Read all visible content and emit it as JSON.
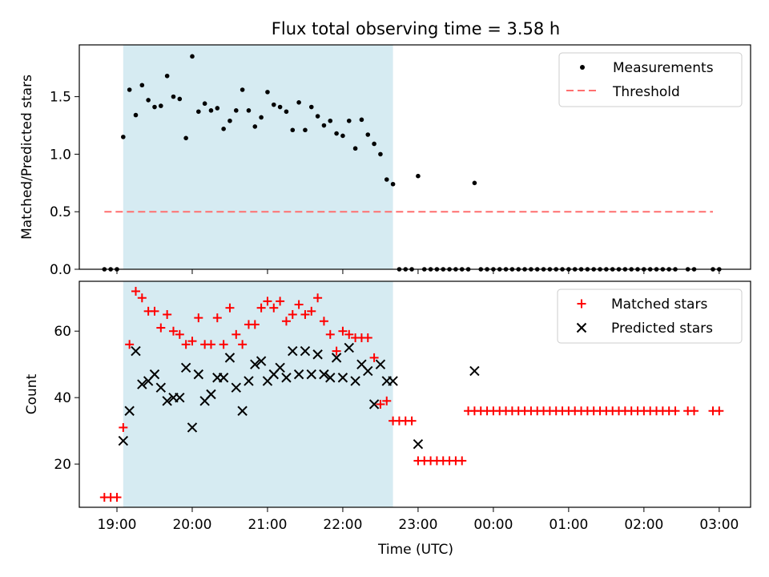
{
  "colors": {
    "measurement": "#000000",
    "threshold": "#ff6f6f",
    "matched": "#ff0000",
    "predicted": "#000000",
    "highlight": "#add8e6"
  },
  "chart_data": [
    {
      "type": "scatter",
      "title": "Flux total observing time = 3.58 h",
      "xlabel": "",
      "ylabel": "Matched/Predicted stars",
      "yticks": [
        "0.0",
        "0.5",
        "1.0",
        "1.5"
      ],
      "ylim": [
        0,
        1.95
      ],
      "x_range": [
        "18:30",
        "03:25"
      ],
      "highlight_span": [
        "19:05",
        "22:40"
      ],
      "legend_position": "upper right",
      "legend": [
        "Measurements",
        "Threshold"
      ],
      "threshold": {
        "name": "Threshold",
        "y": 0.5,
        "x_from": "18:50",
        "x_to": "02:55"
      },
      "series": [
        {
          "name": "Measurements",
          "x": [
            "18:50",
            "18:55",
            "19:00",
            "19:05",
            "19:10",
            "19:15",
            "19:20",
            "19:25",
            "19:30",
            "19:35",
            "19:40",
            "19:45",
            "19:50",
            "19:55",
            "20:00",
            "20:05",
            "20:10",
            "20:15",
            "20:20",
            "20:25",
            "20:30",
            "20:35",
            "20:40",
            "20:45",
            "20:50",
            "20:55",
            "21:00",
            "21:05",
            "21:10",
            "21:15",
            "21:20",
            "21:25",
            "21:30",
            "21:35",
            "21:40",
            "21:45",
            "21:50",
            "21:55",
            "22:00",
            "22:05",
            "22:10",
            "22:15",
            "22:20",
            "22:25",
            "22:30",
            "22:35",
            "22:40",
            "22:45",
            "22:50",
            "22:55",
            "23:00",
            "23:05",
            "23:10",
            "23:15",
            "23:20",
            "23:25",
            "23:30",
            "23:35",
            "23:40",
            "23:45",
            "23:50",
            "23:55",
            "00:00",
            "00:05",
            "00:10",
            "00:15",
            "00:20",
            "00:25",
            "00:30",
            "00:35",
            "00:40",
            "00:45",
            "00:50",
            "00:55",
            "01:00",
            "01:05",
            "01:10",
            "01:15",
            "01:20",
            "01:25",
            "01:30",
            "01:35",
            "01:40",
            "01:45",
            "01:50",
            "01:55",
            "02:00",
            "02:05",
            "02:10",
            "02:15",
            "02:20",
            "02:25",
            "02:35",
            "02:40",
            "02:55",
            "03:00"
          ],
          "y": [
            0,
            0,
            0,
            1.15,
            1.56,
            1.34,
            1.6,
            1.47,
            1.41,
            1.42,
            1.68,
            1.5,
            1.48,
            1.14,
            1.85,
            1.37,
            1.44,
            1.38,
            1.4,
            1.22,
            1.29,
            1.38,
            1.56,
            1.38,
            1.24,
            1.32,
            1.54,
            1.43,
            1.41,
            1.37,
            1.21,
            1.45,
            1.21,
            1.41,
            1.33,
            1.25,
            1.29,
            1.18,
            1.16,
            1.29,
            1.05,
            1.3,
            1.17,
            1.09,
            1.0,
            0.78,
            0.74,
            0,
            0,
            0,
            0.81,
            0,
            0,
            0,
            0,
            0,
            0,
            0,
            0,
            0.75,
            0,
            0,
            0,
            0,
            0,
            0,
            0,
            0,
            0,
            0,
            0,
            0,
            0,
            0,
            0,
            0,
            0,
            0,
            0,
            0,
            0,
            0,
            0,
            0,
            0,
            0,
            0,
            0,
            0,
            0,
            0,
            0,
            0,
            0,
            0,
            0
          ]
        }
      ]
    },
    {
      "type": "scatter",
      "title": "",
      "xlabel": "Time (UTC)",
      "ylabel": "Count",
      "xticks": [
        "19:00",
        "20:00",
        "21:00",
        "22:00",
        "23:00",
        "00:00",
        "01:00",
        "02:00",
        "03:00"
      ],
      "yticks": [
        "20",
        "40",
        "60"
      ],
      "ylim": [
        7,
        75
      ],
      "x_range": [
        "18:30",
        "03:25"
      ],
      "highlight_span": [
        "19:05",
        "22:40"
      ],
      "legend_position": "upper right",
      "legend": [
        "Matched stars",
        "Predicted stars"
      ],
      "series": [
        {
          "name": "Matched stars",
          "marker": "+",
          "x": [
            "18:50",
            "18:55",
            "19:00",
            "19:05",
            "19:10",
            "19:15",
            "19:20",
            "19:25",
            "19:30",
            "19:35",
            "19:40",
            "19:45",
            "19:50",
            "19:55",
            "20:00",
            "20:05",
            "20:10",
            "20:15",
            "20:20",
            "20:25",
            "20:30",
            "20:35",
            "20:40",
            "20:45",
            "20:50",
            "20:55",
            "21:00",
            "21:05",
            "21:10",
            "21:15",
            "21:20",
            "21:25",
            "21:30",
            "21:35",
            "21:40",
            "21:45",
            "21:50",
            "21:55",
            "22:00",
            "22:05",
            "22:10",
            "22:15",
            "22:20",
            "22:25",
            "22:30",
            "22:35",
            "22:40",
            "22:45",
            "22:50",
            "22:55",
            "23:00",
            "23:05",
            "23:10",
            "23:15",
            "23:20",
            "23:25",
            "23:30",
            "23:35",
            "23:40",
            "23:45",
            "23:50",
            "23:55",
            "00:00",
            "00:05",
            "00:10",
            "00:15",
            "00:20",
            "00:25",
            "00:30",
            "00:35",
            "00:40",
            "00:45",
            "00:50",
            "00:55",
            "01:00",
            "01:05",
            "01:10",
            "01:15",
            "01:20",
            "01:25",
            "01:30",
            "01:35",
            "01:40",
            "01:45",
            "01:50",
            "01:55",
            "02:00",
            "02:05",
            "02:10",
            "02:15",
            "02:20",
            "02:25",
            "02:35",
            "02:40",
            "02:55",
            "03:00"
          ],
          "y": [
            10,
            10,
            10,
            31,
            56,
            72,
            70,
            66,
            66,
            61,
            65,
            60,
            59,
            56,
            57,
            64,
            56,
            56,
            64,
            56,
            67,
            59,
            56,
            62,
            62,
            67,
            69,
            67,
            69,
            63,
            65,
            68,
            65,
            66,
            70,
            63,
            59,
            54,
            60,
            59,
            58,
            58,
            58,
            52,
            38,
            39,
            33,
            33,
            33,
            33,
            21,
            21,
            21,
            21,
            21,
            21,
            21,
            21,
            36,
            36,
            36,
            36,
            36,
            36,
            36,
            36,
            36,
            36,
            36,
            36,
            36,
            36,
            36,
            36,
            36,
            36,
            36,
            36,
            36,
            36,
            36,
            36,
            36,
            36,
            36,
            36,
            36,
            36,
            36,
            36,
            36,
            36,
            36,
            36,
            36,
            36
          ]
        },
        {
          "name": "Predicted stars",
          "marker": "x",
          "x": [
            "19:05",
            "19:10",
            "19:15",
            "19:20",
            "19:25",
            "19:30",
            "19:35",
            "19:40",
            "19:45",
            "19:50",
            "19:55",
            "20:00",
            "20:05",
            "20:10",
            "20:15",
            "20:20",
            "20:25",
            "20:30",
            "20:35",
            "20:40",
            "20:45",
            "20:50",
            "20:55",
            "21:00",
            "21:05",
            "21:10",
            "21:15",
            "21:20",
            "21:25",
            "21:30",
            "21:35",
            "21:40",
            "21:45",
            "21:50",
            "21:55",
            "22:00",
            "22:05",
            "22:10",
            "22:15",
            "22:20",
            "22:25",
            "22:30",
            "22:35",
            "22:40",
            "23:00",
            "23:45"
          ],
          "y": [
            27,
            36,
            54,
            44,
            45,
            47,
            43,
            39,
            40,
            40,
            49,
            31,
            47,
            39,
            41,
            46,
            46,
            52,
            43,
            36,
            45,
            50,
            51,
            45,
            47,
            49,
            46,
            54,
            47,
            54,
            47,
            53,
            47,
            46,
            52,
            46,
            55,
            45,
            50,
            48,
            38,
            50,
            45,
            45,
            26,
            48
          ]
        }
      ]
    }
  ]
}
